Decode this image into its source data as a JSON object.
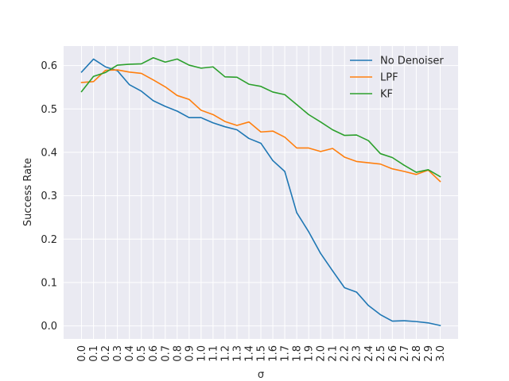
{
  "chart_data": {
    "type": "line",
    "title": "",
    "xlabel": "σ",
    "ylabel": "Success Rate",
    "x": [
      0.0,
      0.1,
      0.2,
      0.3,
      0.4,
      0.5,
      0.6,
      0.7,
      0.8,
      0.9,
      1.0,
      1.1,
      1.2,
      1.3,
      1.4,
      1.5,
      1.6,
      1.7,
      1.8,
      1.9,
      2.0,
      2.1,
      2.2,
      2.3,
      2.4,
      2.5,
      2.6,
      2.7,
      2.8,
      2.9,
      3.0
    ],
    "x_tick_labels": [
      "0.0",
      "0.1",
      "0.2",
      "0.3",
      "0.4",
      "0.5",
      "0.6",
      "0.7",
      "0.8",
      "0.9",
      "1.0",
      "1.1",
      "1.2",
      "1.3",
      "1.4",
      "1.5",
      "1.6",
      "1.7",
      "1.8",
      "1.9",
      "2.0",
      "2.1",
      "2.2",
      "2.3",
      "2.4",
      "2.5",
      "2.6",
      "2.7",
      "2.8",
      "2.9",
      "3.0"
    ],
    "y_ticks": [
      0.0,
      0.1,
      0.2,
      0.3,
      0.4,
      0.5,
      0.6
    ],
    "y_tick_labels": [
      "0.0",
      "0.1",
      "0.2",
      "0.3",
      "0.4",
      "0.5",
      "0.6"
    ],
    "xlim": [
      -0.15,
      3.15
    ],
    "ylim": [
      -0.03,
      0.645
    ],
    "grid": true,
    "legend_position": "top-right",
    "series": [
      {
        "name": "No Denoiser",
        "color": "#1f77b4",
        "values": [
          0.585,
          0.615,
          0.597,
          0.588,
          0.556,
          0.541,
          0.519,
          0.506,
          0.495,
          0.48,
          0.48,
          0.468,
          0.459,
          0.452,
          0.432,
          0.421,
          0.381,
          0.356,
          0.261,
          0.217,
          0.167,
          0.127,
          0.088,
          0.078,
          0.047,
          0.026,
          0.011,
          0.012,
          0.01,
          0.007,
          0.001
        ]
      },
      {
        "name": "LPF",
        "color": "#ff7f0e",
        "values": [
          0.561,
          0.563,
          0.589,
          0.59,
          0.585,
          0.582,
          0.567,
          0.551,
          0.531,
          0.522,
          0.497,
          0.487,
          0.471,
          0.462,
          0.47,
          0.447,
          0.449,
          0.435,
          0.41,
          0.41,
          0.402,
          0.409,
          0.389,
          0.379,
          0.376,
          0.373,
          0.362,
          0.356,
          0.349,
          0.359,
          0.333
        ]
      },
      {
        "name": "KF",
        "color": "#2ca02c",
        "values": [
          0.54,
          0.575,
          0.584,
          0.601,
          0.603,
          0.604,
          0.618,
          0.608,
          0.615,
          0.601,
          0.594,
          0.597,
          0.574,
          0.573,
          0.557,
          0.552,
          0.539,
          0.533,
          0.51,
          0.487,
          0.47,
          0.452,
          0.439,
          0.44,
          0.427,
          0.397,
          0.388,
          0.37,
          0.354,
          0.36,
          0.344
        ]
      }
    ]
  }
}
